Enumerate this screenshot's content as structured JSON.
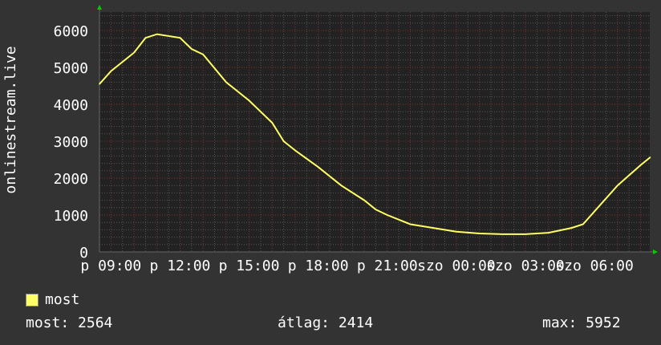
{
  "chart_data": {
    "type": "line",
    "ylabel": "onlinestream.live",
    "ylim": [
      0,
      6500
    ],
    "y_ticks": [
      "0",
      "1000",
      "2000",
      "3000",
      "4000",
      "5000",
      "6000"
    ],
    "x_tick_labels": [
      "p 09:00",
      "p 12:00",
      "p 15:00",
      "p 18:00",
      "p 21:00",
      "szo 00:00",
      "szo 03:00",
      "szo 06:00"
    ],
    "grid": true,
    "line_color": "#ffff66",
    "series": [
      {
        "name": "most",
        "x": [
          "08:30",
          "09:00",
          "10:00",
          "10:30",
          "11:00",
          "12:00",
          "12:30",
          "13:00",
          "14:00",
          "15:00",
          "16:00",
          "16:30",
          "17:00",
          "18:00",
          "19:00",
          "20:00",
          "20:30",
          "21:00",
          "22:00",
          "23:00",
          "00:00",
          "01:00",
          "02:00",
          "03:00",
          "04:00",
          "05:00",
          "05:30",
          "06:00",
          "07:00",
          "08:00",
          "08:25"
        ],
        "values": [
          4550,
          4900,
          5400,
          5800,
          5900,
          5800,
          5500,
          5350,
          4600,
          4100,
          3500,
          3000,
          2750,
          2300,
          1800,
          1400,
          1150,
          1000,
          750,
          650,
          550,
          500,
          480,
          480,
          520,
          650,
          750,
          1100,
          1800,
          2350,
          2564
        ]
      }
    ]
  },
  "legend": {
    "label": "most",
    "color": "#ffff66"
  },
  "stats": {
    "current": "most: 2564",
    "average": "átlag: 2414",
    "max": "max: 5952"
  }
}
